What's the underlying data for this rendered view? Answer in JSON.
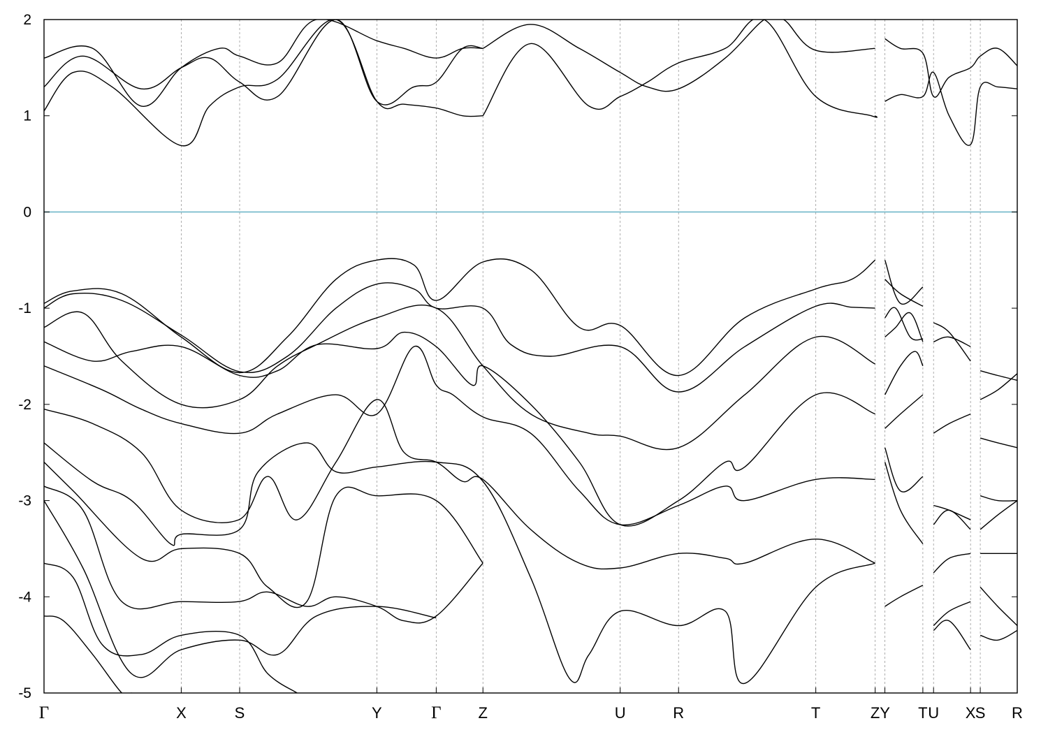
{
  "chart_data": {
    "type": "line",
    "title": "",
    "xlabel": "",
    "ylabel": "",
    "ylim": [
      -5,
      2
    ],
    "yticks": [
      2,
      1,
      0,
      -1,
      -2,
      -3,
      -4,
      -5
    ],
    "ytick_labels": [
      "2",
      "1",
      "0",
      "-1",
      "-2",
      "-3",
      "-4",
      "-5"
    ],
    "xlim": [
      0,
      1
    ],
    "kpoints": [
      {
        "label": "Γ",
        "x": 0.0
      },
      {
        "label": "X",
        "x": 0.141
      },
      {
        "label": "S",
        "x": 0.201
      },
      {
        "label": "Y",
        "x": 0.342
      },
      {
        "label": "Γ",
        "x": 0.403
      },
      {
        "label": "Z",
        "x": 0.451
      },
      {
        "label": "U",
        "x": 0.592
      },
      {
        "label": "R",
        "x": 0.652
      },
      {
        "label": "T",
        "x": 0.793
      },
      {
        "label": "Z",
        "x": 0.854
      },
      {
        "label": "Y",
        "x": 0.864
      },
      {
        "label": "T",
        "x": 0.903
      },
      {
        "label": "U",
        "x": 0.914
      },
      {
        "label": "X",
        "x": 0.952
      },
      {
        "label": "S",
        "x": 0.962
      },
      {
        "label": "R",
        "x": 1.0
      }
    ],
    "fermi_level": 0,
    "fermi_color": "#6fb7c9",
    "band_color": "#000000",
    "grid": "dashed vertical lines at k-points",
    "series": [
      {
        "x": [
          0,
          0.03,
          0.07,
          0.141,
          0.17,
          0.201,
          0.24,
          0.3,
          0.342,
          0.37,
          0.403,
          0.43,
          0.451
        ],
        "y": [
          1.05,
          1.45,
          1.3,
          0.69,
          1.1,
          1.3,
          1.38,
          2.0,
          1.15,
          1.12,
          1.08,
          1.0,
          1.0
        ]
      },
      {
        "x": [
          0,
          0.04,
          0.1,
          0.141,
          0.17,
          0.201,
          0.24,
          0.3,
          0.342,
          0.38,
          0.403,
          0.43,
          0.451
        ],
        "y": [
          1.3,
          1.62,
          1.28,
          1.5,
          1.6,
          1.35,
          1.2,
          2.0,
          1.15,
          1.3,
          1.35,
          1.7,
          1.7
        ]
      },
      {
        "x": [
          0,
          0.05,
          0.1,
          0.141,
          0.18,
          0.201,
          0.24,
          0.28,
          0.342,
          0.37,
          0.403,
          0.43,
          0.451
        ],
        "y": [
          1.6,
          1.7,
          1.1,
          1.5,
          1.7,
          1.62,
          1.55,
          2.0,
          1.78,
          1.7,
          1.6,
          1.7,
          1.7
        ]
      },
      {
        "x": [
          0.451,
          0.5,
          0.56,
          0.592,
          0.62,
          0.652,
          0.7,
          0.74,
          0.793,
          0.85,
          0.854
        ],
        "y": [
          1.0,
          1.75,
          1.1,
          1.2,
          1.35,
          1.55,
          1.7,
          2.0,
          1.2,
          1.0,
          1.0
        ]
      },
      {
        "x": [
          0.451,
          0.5,
          0.55,
          0.592,
          0.62,
          0.652,
          0.7,
          0.74,
          0.76,
          0.793,
          0.854
        ],
        "y": [
          1.7,
          1.95,
          1.7,
          1.45,
          1.3,
          1.28,
          1.6,
          2.0,
          2.0,
          1.68,
          1.7
        ]
      },
      {
        "x": [
          0.864,
          0.88,
          0.903,
          0.914,
          0.93,
          0.952,
          0.962,
          0.98,
          1.0
        ],
        "y": [
          1.15,
          1.22,
          1.2,
          1.45,
          1.0,
          0.7,
          1.3,
          1.3,
          1.28
        ]
      },
      {
        "x": [
          0.864,
          0.88,
          0.903,
          0.914,
          0.93,
          0.952,
          0.962,
          0.98,
          1.0
        ],
        "y": [
          1.8,
          1.7,
          1.65,
          1.2,
          1.4,
          1.5,
          1.62,
          1.7,
          1.52
        ]
      },
      {
        "x": [
          0,
          0.03,
          0.08,
          0.141,
          0.201,
          0.25,
          0.3,
          0.342,
          0.38,
          0.403,
          0.451,
          0.5,
          0.55,
          0.592,
          0.652,
          0.72,
          0.793,
          0.83,
          0.854
        ],
        "y": [
          -0.95,
          -0.82,
          -0.85,
          -1.3,
          -1.67,
          -1.3,
          -0.7,
          -0.5,
          -0.55,
          -0.92,
          -0.52,
          -0.6,
          -1.2,
          -1.18,
          -1.7,
          -1.1,
          -0.8,
          -0.7,
          -0.5
        ]
      },
      {
        "x": [
          0,
          0.03,
          0.08,
          0.141,
          0.201,
          0.25,
          0.3,
          0.342,
          0.38,
          0.403,
          0.451,
          0.48,
          0.52,
          0.592,
          0.652,
          0.72,
          0.793,
          0.83,
          0.854
        ],
        "y": [
          -1.0,
          -0.85,
          -0.92,
          -1.28,
          -1.66,
          -1.5,
          -1.0,
          -0.75,
          -0.8,
          -1.0,
          -1.0,
          -1.38,
          -1.5,
          -1.4,
          -1.87,
          -1.4,
          -0.98,
          -0.99,
          -1.0
        ]
      },
      {
        "x": [
          0,
          0.04,
          0.08,
          0.141,
          0.201,
          0.24,
          0.28,
          0.342,
          0.403,
          0.451,
          0.5,
          0.56,
          0.592,
          0.652,
          0.72,
          0.793,
          0.854
        ],
        "y": [
          -1.2,
          -1.05,
          -1.55,
          -2.0,
          -1.95,
          -1.6,
          -1.38,
          -1.1,
          -1.0,
          -1.6,
          -2.1,
          -2.3,
          -2.33,
          -2.45,
          -1.9,
          -1.3,
          -1.58
        ]
      },
      {
        "x": [
          0,
          0.05,
          0.09,
          0.141,
          0.201,
          0.24,
          0.28,
          0.342,
          0.37,
          0.403,
          0.44,
          0.451,
          0.5,
          0.55,
          0.592,
          0.652,
          0.7,
          0.72,
          0.793,
          0.854
        ],
        "y": [
          -1.35,
          -1.55,
          -1.45,
          -1.4,
          -1.7,
          -1.65,
          -1.38,
          -1.42,
          -1.25,
          -1.4,
          -1.8,
          -1.6,
          -2.0,
          -2.6,
          -3.25,
          -3.0,
          -2.6,
          -2.65,
          -1.9,
          -2.1
        ]
      },
      {
        "x": [
          0,
          0.06,
          0.1,
          0.141,
          0.201,
          0.24,
          0.3,
          0.342,
          0.38,
          0.403,
          0.42,
          0.451,
          0.5,
          0.55,
          0.592,
          0.652,
          0.7,
          0.72,
          0.793,
          0.854
        ],
        "y": [
          -1.6,
          -1.85,
          -2.05,
          -2.2,
          -2.3,
          -2.1,
          -1.9,
          -2.1,
          -1.4,
          -1.8,
          -1.9,
          -2.13,
          -2.3,
          -2.9,
          -3.25,
          -3.05,
          -2.85,
          -3.0,
          -2.78,
          -2.78
        ]
      },
      {
        "x": [
          0,
          0.05,
          0.1,
          0.141,
          0.2,
          0.23,
          0.26,
          0.3,
          0.342,
          0.37,
          0.403,
          0.43,
          0.451,
          0.5,
          0.55,
          0.592,
          0.652,
          0.7,
          0.72,
          0.793,
          0.854
        ],
        "y": [
          -2.05,
          -2.2,
          -2.5,
          -3.1,
          -3.2,
          -2.75,
          -3.2,
          -2.6,
          -1.95,
          -2.5,
          -2.6,
          -2.8,
          -2.78,
          -3.3,
          -3.65,
          -3.7,
          -3.55,
          -3.6,
          -3.65,
          -3.4,
          -3.65
        ]
      },
      {
        "x": [
          0,
          0.05,
          0.09,
          0.13,
          0.141,
          0.201,
          0.22,
          0.27,
          0.3,
          0.342,
          0.403,
          0.451,
          0.5,
          0.54,
          0.56,
          0.592,
          0.652,
          0.7,
          0.72,
          0.793,
          0.854
        ],
        "y": [
          -2.4,
          -2.8,
          -3.0,
          -3.45,
          -3.35,
          -3.3,
          -2.7,
          -2.4,
          -2.7,
          -2.65,
          -2.6,
          -2.8,
          -3.8,
          -4.85,
          -4.6,
          -4.15,
          -4.3,
          -4.15,
          -4.9,
          -3.9,
          -3.65
        ]
      },
      {
        "x": [
          0,
          0.03,
          0.1,
          0.141,
          0.201,
          0.23,
          0.27,
          0.3,
          0.342,
          0.403,
          0.451
        ],
        "y": [
          -2.6,
          -2.9,
          -3.6,
          -3.5,
          -3.55,
          -3.9,
          -4.05,
          -2.95,
          -2.95,
          -3.0,
          -3.65
        ]
      },
      {
        "x": [
          0,
          0.04,
          0.08,
          0.141,
          0.2,
          0.23,
          0.27,
          0.3,
          0.342,
          0.37,
          0.403,
          0.451
        ],
        "y": [
          -2.85,
          -3.1,
          -4.05,
          -4.05,
          -4.05,
          -3.95,
          -4.1,
          -4.0,
          -4.1,
          -4.25,
          -4.2,
          -3.65
        ]
      },
      {
        "x": [
          0,
          0.04,
          0.09,
          0.141,
          0.201,
          0.24,
          0.28,
          0.342,
          0.403
        ],
        "y": [
          -3.0,
          -3.7,
          -4.8,
          -4.55,
          -4.45,
          -4.6,
          -4.2,
          -4.1,
          -4.22
        ]
      },
      {
        "x": [
          0,
          0.03,
          0.06,
          0.1,
          0.141,
          0.201,
          0.23,
          0.26
        ],
        "y": [
          -3.65,
          -3.8,
          -4.5,
          -4.6,
          -4.4,
          -4.4,
          -4.8,
          -5.0
        ]
      },
      {
        "x": [
          0,
          0.02,
          0.05,
          0.08,
          0.09
        ],
        "y": [
          -4.2,
          -4.25,
          -4.6,
          -5.0,
          -5.0
        ]
      },
      {
        "x": [
          0.864,
          0.88,
          0.903
        ],
        "y": [
          -0.5,
          -0.95,
          -0.78
        ]
      },
      {
        "x": [
          0.864,
          0.88,
          0.903
        ],
        "y": [
          -0.7,
          -0.85,
          -0.98
        ]
      },
      {
        "x": [
          0.864,
          0.875,
          0.89,
          0.903
        ],
        "y": [
          -1.1,
          -1.0,
          -1.3,
          -1.32
        ]
      },
      {
        "x": [
          0.864,
          0.875,
          0.89,
          0.903
        ],
        "y": [
          -1.3,
          -1.2,
          -1.05,
          -1.35
        ]
      },
      {
        "x": [
          0.864,
          0.88,
          0.895,
          0.903
        ],
        "y": [
          -1.9,
          -1.6,
          -1.45,
          -1.6
        ]
      },
      {
        "x": [
          0.864,
          0.88,
          0.903
        ],
        "y": [
          -2.25,
          -2.1,
          -1.9
        ]
      },
      {
        "x": [
          0.864,
          0.88,
          0.903
        ],
        "y": [
          -2.45,
          -2.9,
          -2.75
        ]
      },
      {
        "x": [
          0.864,
          0.88,
          0.903
        ],
        "y": [
          -2.6,
          -3.1,
          -3.45
        ]
      },
      {
        "x": [
          0.864,
          0.88,
          0.903
        ],
        "y": [
          -4.1,
          -4.0,
          -3.88
        ]
      },
      {
        "x": [
          0.914,
          0.93,
          0.952
        ],
        "y": [
          -1.15,
          -1.25,
          -1.55
        ]
      },
      {
        "x": [
          0.914,
          0.93,
          0.952
        ],
        "y": [
          -1.35,
          -1.3,
          -1.4
        ]
      },
      {
        "x": [
          0.914,
          0.93,
          0.952
        ],
        "y": [
          -2.3,
          -2.2,
          -2.1
        ]
      },
      {
        "x": [
          0.914,
          0.93,
          0.952
        ],
        "y": [
          -3.05,
          -3.1,
          -3.2
        ]
      },
      {
        "x": [
          0.914,
          0.93,
          0.952
        ],
        "y": [
          -3.25,
          -3.1,
          -3.3
        ]
      },
      {
        "x": [
          0.914,
          0.93,
          0.952
        ],
        "y": [
          -3.75,
          -3.6,
          -3.55
        ]
      },
      {
        "x": [
          0.914,
          0.93,
          0.952
        ],
        "y": [
          -4.3,
          -4.15,
          -4.05
        ]
      },
      {
        "x": [
          0.914,
          0.93,
          0.952
        ],
        "y": [
          -4.35,
          -4.25,
          -4.55
        ]
      },
      {
        "x": [
          0.962,
          0.98,
          1.0
        ],
        "y": [
          -1.65,
          -1.7,
          -1.75
        ]
      },
      {
        "x": [
          0.962,
          0.98,
          1.0
        ],
        "y": [
          -1.95,
          -1.85,
          -1.68
        ]
      },
      {
        "x": [
          0.962,
          0.98,
          1.0
        ],
        "y": [
          -2.35,
          -2.4,
          -2.45
        ]
      },
      {
        "x": [
          0.962,
          0.98,
          1.0
        ],
        "y": [
          -2.95,
          -3.0,
          -3.0
        ]
      },
      {
        "x": [
          0.962,
          0.98,
          1.0
        ],
        "y": [
          -3.3,
          -3.15,
          -3.0
        ]
      },
      {
        "x": [
          0.962,
          0.98,
          1.0
        ],
        "y": [
          -3.55,
          -3.55,
          -3.55
        ]
      },
      {
        "x": [
          0.962,
          0.98,
          1.0
        ],
        "y": [
          -3.9,
          -4.1,
          -4.3
        ]
      },
      {
        "x": [
          0.962,
          0.98,
          1.0
        ],
        "y": [
          -4.4,
          -4.45,
          -4.35
        ]
      }
    ]
  }
}
